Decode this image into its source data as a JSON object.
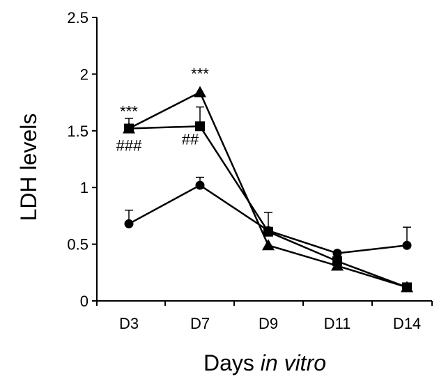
{
  "chart_data": {
    "type": "line",
    "title": "",
    "xlabel_prefix": "Days ",
    "xlabel_italic": "in vitro",
    "ylabel": "LDH levels",
    "categories": [
      "D3",
      "D7",
      "D9",
      "D11",
      "D14"
    ],
    "ylim": [
      0,
      2.5
    ],
    "yticks": [
      "0",
      "0.5",
      "1",
      "1.5",
      "2",
      "2.5"
    ],
    "grid": false,
    "legend": "none",
    "series": [
      {
        "marker": "circle",
        "values": [
          0.68,
          1.02,
          0.62,
          0.42,
          0.49
        ],
        "errors": [
          0.12,
          0.07,
          0.0,
          0.0,
          0.16
        ]
      },
      {
        "marker": "square",
        "values": [
          1.52,
          1.54,
          0.61,
          0.35,
          0.12
        ],
        "errors": [
          0.09,
          0.17,
          0.17,
          0.0,
          0.0
        ]
      },
      {
        "marker": "triangle",
        "values": [
          1.52,
          1.84,
          0.49,
          0.31,
          0.12
        ],
        "errors": [
          0.0,
          0.0,
          0.0,
          0.0,
          0.0
        ]
      }
    ],
    "annotations": [
      {
        "text": "***",
        "category": "D3",
        "y": 1.65,
        "position": "above"
      },
      {
        "text": "###",
        "category": "D3",
        "y": 1.52,
        "position": "below"
      },
      {
        "text": "***",
        "category": "D7",
        "y": 1.98,
        "position": "above"
      },
      {
        "text": "##",
        "category": "D7",
        "y": 1.54,
        "position": "below-left"
      }
    ],
    "color": "#000000"
  }
}
